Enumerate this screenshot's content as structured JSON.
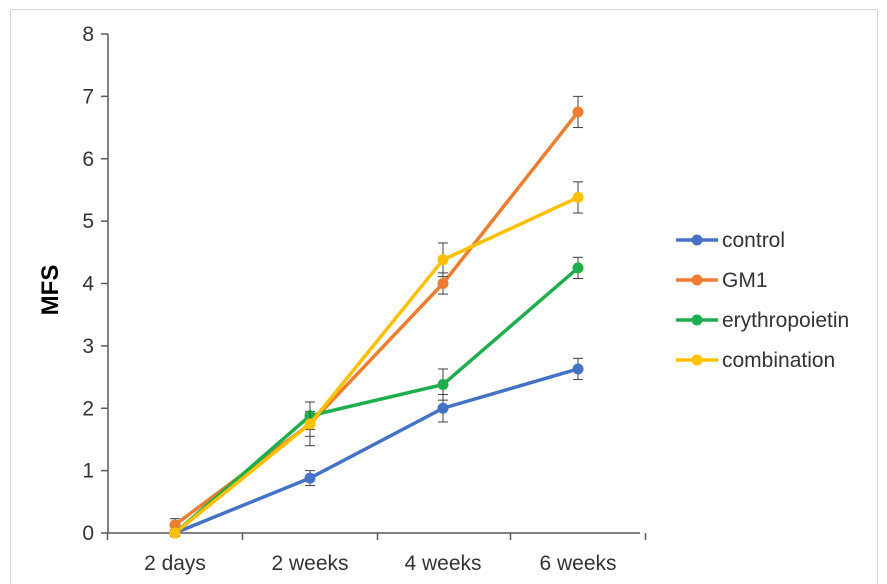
{
  "chart_data": {
    "type": "line",
    "categories": [
      "2 days",
      "2 weeks",
      "4 weeks",
      "6 weeks"
    ],
    "title": "",
    "xlabel": "",
    "ylabel": "MFS",
    "ylim": [
      0,
      8
    ],
    "yticks": [
      0,
      1,
      2,
      3,
      4,
      5,
      6,
      7,
      8
    ],
    "grid": false,
    "legend_position": "right",
    "series": [
      {
        "name": "control",
        "color": "#4472C4",
        "values": [
          0.0,
          0.88,
          2.0,
          2.63
        ],
        "errors": [
          0.05,
          0.12,
          0.22,
          0.17
        ]
      },
      {
        "name": "GM1",
        "color": "#ED7D31",
        "values": [
          0.13,
          1.75,
          4.0,
          6.75
        ],
        "errors": [
          0.1,
          0.2,
          0.17,
          0.25
        ]
      },
      {
        "name": "erythropoietin",
        "color": "#1FAE4B",
        "values": [
          0.0,
          1.88,
          2.38,
          4.25
        ],
        "errors": [
          0.05,
          0.22,
          0.25,
          0.17
        ]
      },
      {
        "name": "combination",
        "color": "#FFC000",
        "values": [
          0.0,
          1.75,
          4.38,
          5.38
        ],
        "errors": [
          0.05,
          0.35,
          0.27,
          0.25
        ]
      }
    ]
  }
}
